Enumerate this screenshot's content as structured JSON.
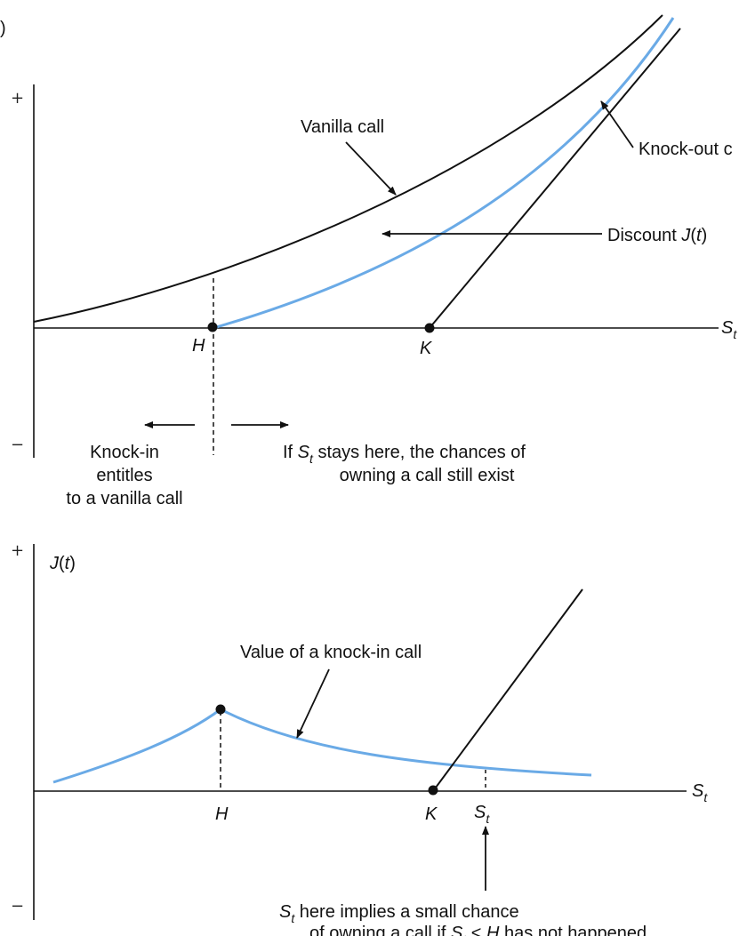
{
  "panel_a": {
    "corner_label": ")",
    "plus": "+",
    "minus": "−",
    "vanilla_call": "Vanilla call",
    "knock_out": "Knock-out c",
    "discount_prefix": "Discount ",
    "discount_j": "J",
    "discount_paren_open": "(",
    "discount_t": "t",
    "discount_paren_close": ")",
    "axis_s": "S",
    "axis_s_sub": "t",
    "h_label": "H",
    "k_label": "K",
    "knock_in_line1": "Knock-in",
    "knock_in_line2": "entitles",
    "knock_in_line3": "to a vanilla call",
    "if_prefix": "If ",
    "if_s": "S",
    "if_s_sub": "t",
    "if_suffix": " stays here, the chances of",
    "owning_line": "owning a call still exist"
  },
  "panel_b": {
    "plus": "+",
    "minus": "−",
    "y_j": "J",
    "y_paren_open": "(",
    "y_t": "t",
    "y_paren_close": ")",
    "value_label": "Value of a knock-in call",
    "axis_s": "S",
    "axis_s_sub": "t",
    "h_label": "H",
    "k_label": "K",
    "st_label": "S",
    "st_sub": "t",
    "note_s": "S",
    "note_s_sub": "t",
    "note_line1": " here implies a small chance",
    "note_line2_prefix": "of owning a call if ",
    "note_line2_s": "S",
    "note_line2_sub": "t",
    "note_line2_lt": " < ",
    "note_line2_h": "H",
    "note_line2_suffix": "  has not happened"
  },
  "colors": {
    "blue_curve": "#6aaae6",
    "black": "#111111"
  }
}
